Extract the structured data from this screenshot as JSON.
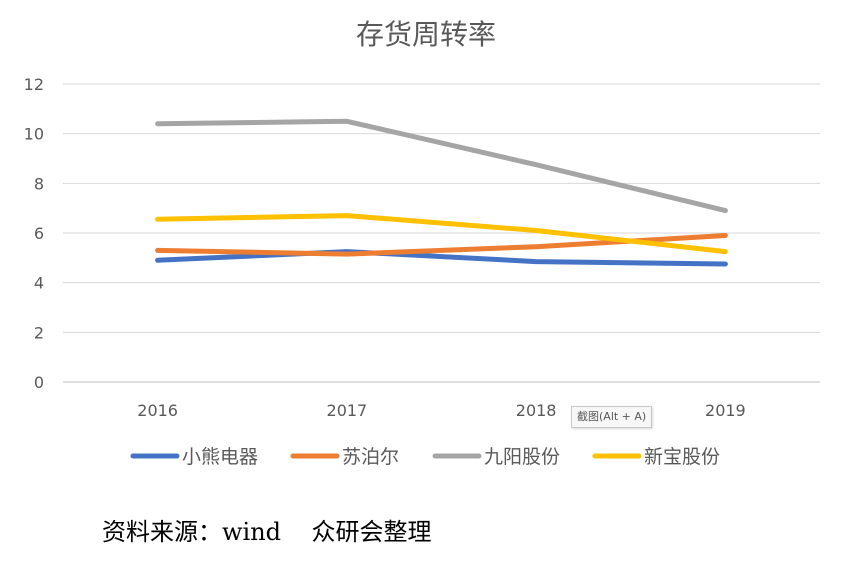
{
  "chart_data": {
    "type": "line",
    "title": "存货周转率",
    "categories": [
      "2016",
      "2017",
      "2018",
      "2019"
    ],
    "ylim": [
      0,
      12
    ],
    "yticks": [
      "0",
      "2",
      "4",
      "6",
      "8",
      "10",
      "12"
    ],
    "grid": true,
    "legend_position": "bottom",
    "series": [
      {
        "name": "小熊电器",
        "color": "#4472C4",
        "values": [
          4.9,
          5.25,
          4.85,
          4.75
        ]
      },
      {
        "name": "苏泊尔",
        "color": "#ED7D31",
        "values": [
          5.3,
          5.15,
          5.45,
          5.9
        ]
      },
      {
        "name": "九阳股份",
        "color": "#A5A5A5",
        "values": [
          10.4,
          10.5,
          8.75,
          6.9
        ]
      },
      {
        "name": "新宝股份",
        "color": "#FFC000",
        "values": [
          6.55,
          6.7,
          6.1,
          5.25
        ]
      }
    ]
  },
  "source_note": "资料来源：wind    众研会整理",
  "tooltip": "截图(Alt + A)"
}
